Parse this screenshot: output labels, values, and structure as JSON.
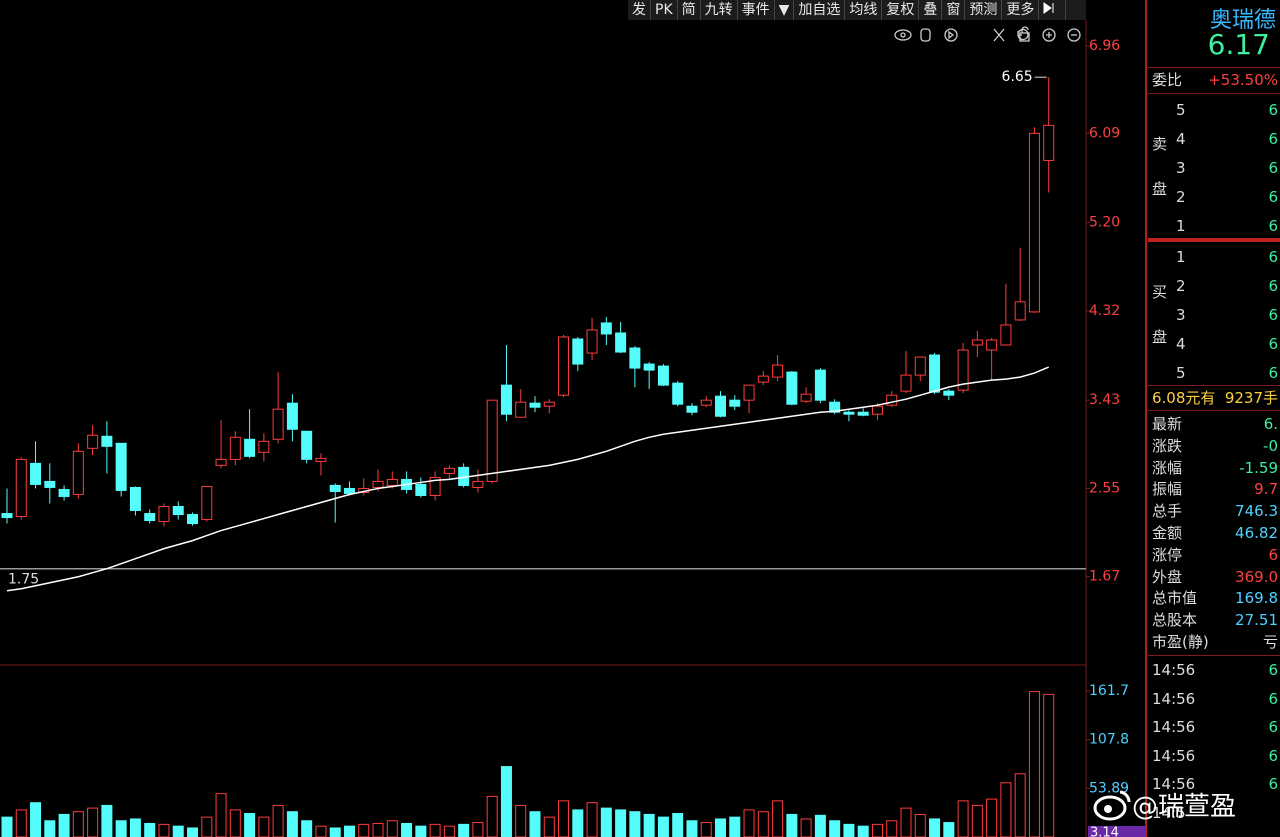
{
  "toolbar": {
    "items": [
      "发",
      "PK",
      "简",
      "九转",
      "事件",
      "▼",
      "加自选",
      "均线",
      "复权",
      "叠",
      "窗",
      "预测",
      "更多"
    ]
  },
  "chart_data": [
    {
      "type": "candlestick",
      "up_color": "#ff3c3c",
      "down_color": "#54fcfc",
      "open": [
        2.3,
        2.27,
        2.8,
        2.62,
        2.54,
        2.49,
        2.95,
        3.07,
        3.0,
        2.56,
        2.3,
        2.22,
        2.37,
        2.29,
        2.24,
        2.78,
        2.84,
        3.04,
        2.91,
        3.04,
        3.4,
        3.12,
        2.82,
        2.58,
        2.55,
        2.51,
        2.56,
        2.58,
        2.64,
        2.59,
        2.48,
        2.7,
        2.76,
        2.56,
        2.62,
        3.58,
        3.26,
        3.4,
        3.37,
        3.48,
        4.04,
        3.9,
        4.2,
        4.1,
        3.95,
        3.79,
        3.77,
        3.6,
        3.37,
        3.38,
        3.47,
        3.43,
        3.43,
        3.61,
        3.66,
        3.71,
        3.42,
        3.73,
        3.41,
        3.31,
        3.31,
        3.29,
        3.38,
        3.52,
        3.68,
        3.88,
        3.52,
        3.53,
        3.98,
        3.93,
        3.98,
        4.23,
        4.31,
        5.82
      ],
      "high": [
        2.55,
        2.86,
        3.02,
        2.8,
        2.58,
        3.0,
        3.18,
        3.22,
        3.0,
        2.57,
        2.34,
        2.4,
        2.42,
        2.31,
        2.57,
        3.23,
        3.12,
        3.34,
        3.1,
        3.71,
        3.49,
        3.12,
        2.9,
        2.6,
        2.62,
        2.65,
        2.74,
        2.72,
        2.72,
        2.66,
        2.72,
        2.78,
        2.8,
        2.74,
        3.43,
        3.98,
        3.54,
        3.47,
        3.44,
        4.08,
        4.06,
        4.25,
        4.26,
        4.21,
        3.97,
        3.81,
        3.79,
        3.62,
        3.4,
        3.47,
        3.52,
        3.48,
        3.58,
        3.72,
        3.88,
        3.72,
        3.56,
        3.75,
        3.44,
        3.33,
        3.35,
        3.4,
        3.52,
        3.92,
        3.86,
        3.9,
        3.54,
        4.0,
        4.12,
        4.05,
        4.59,
        4.95,
        6.15,
        6.65
      ],
      "low": [
        2.2,
        2.24,
        2.55,
        2.4,
        2.43,
        2.45,
        2.88,
        2.7,
        2.47,
        2.28,
        2.2,
        2.17,
        2.24,
        2.18,
        2.22,
        2.75,
        2.78,
        2.85,
        2.82,
        3.0,
        3.02,
        2.8,
        2.68,
        2.21,
        2.48,
        2.48,
        2.52,
        2.55,
        2.5,
        2.46,
        2.43,
        2.64,
        2.56,
        2.51,
        2.6,
        3.22,
        3.26,
        3.31,
        3.3,
        3.46,
        3.72,
        3.83,
        3.98,
        3.9,
        3.56,
        3.54,
        3.57,
        3.37,
        3.28,
        3.36,
        3.26,
        3.33,
        3.3,
        3.58,
        3.62,
        3.38,
        3.4,
        3.4,
        3.29,
        3.22,
        3.27,
        3.23,
        3.36,
        3.5,
        3.62,
        3.49,
        3.43,
        3.5,
        3.86,
        3.63,
        3.98,
        4.22,
        4.3,
        5.5
      ],
      "close": [
        2.26,
        2.84,
        2.59,
        2.56,
        2.47,
        2.92,
        3.08,
        2.97,
        2.53,
        2.33,
        2.23,
        2.37,
        2.29,
        2.2,
        2.57,
        2.84,
        3.06,
        2.87,
        3.02,
        3.34,
        3.14,
        2.84,
        2.85,
        2.52,
        2.5,
        2.55,
        2.62,
        2.64,
        2.54,
        2.48,
        2.66,
        2.75,
        2.58,
        2.62,
        3.43,
        3.29,
        3.41,
        3.36,
        3.41,
        4.06,
        3.79,
        4.13,
        4.09,
        3.91,
        3.75,
        3.73,
        3.58,
        3.39,
        3.31,
        3.43,
        3.27,
        3.37,
        3.58,
        3.67,
        3.78,
        3.39,
        3.49,
        3.43,
        3.31,
        3.29,
        3.28,
        3.37,
        3.48,
        3.68,
        3.86,
        3.51,
        3.48,
        3.93,
        4.03,
        4.03,
        4.18,
        4.41,
        6.09,
        6.17
      ],
      "lines": [
        {
          "color": "#ffffff",
          "values": [
            1.53,
            1.55,
            1.58,
            1.61,
            1.64,
            1.67,
            1.71,
            1.75,
            1.8,
            1.85,
            1.9,
            1.95,
            1.99,
            2.03,
            2.08,
            2.13,
            2.17,
            2.21,
            2.25,
            2.29,
            2.33,
            2.37,
            2.41,
            2.45,
            2.49,
            2.52,
            2.55,
            2.57,
            2.59,
            2.61,
            2.63,
            2.64,
            2.66,
            2.68,
            2.7,
            2.72,
            2.74,
            2.76,
            2.78,
            2.81,
            2.84,
            2.88,
            2.92,
            2.97,
            3.02,
            3.06,
            3.09,
            3.11,
            3.13,
            3.15,
            3.17,
            3.19,
            3.21,
            3.23,
            3.25,
            3.27,
            3.29,
            3.31,
            3.32,
            3.34,
            3.36,
            3.38,
            3.41,
            3.44,
            3.48,
            3.52,
            3.56,
            3.59,
            3.61,
            3.63,
            3.64,
            3.66,
            3.7,
            3.76
          ]
        }
      ],
      "ylim": [
        0.79,
        7.22
      ],
      "yticks": [
        6.96,
        6.09,
        {
          "value": 5.2,
          "label": "5.20"
        },
        4.32,
        3.43,
        2.55,
        1.67
      ],
      "ref_line": {
        "value": 1.75,
        "color": "#9a9a9a"
      }
    },
    {
      "type": "bar",
      "values": [
        22,
        30,
        38,
        18,
        25,
        28,
        32,
        35,
        18,
        20,
        15,
        14,
        12,
        10,
        22,
        48,
        30,
        26,
        22,
        35,
        28,
        18,
        12,
        10,
        12,
        14,
        15,
        18,
        15,
        12,
        14,
        12,
        14,
        16,
        45,
        78,
        35,
        28,
        22,
        40,
        30,
        38,
        32,
        30,
        28,
        25,
        22,
        26,
        18,
        16,
        20,
        22,
        30,
        28,
        40,
        25,
        20,
        24,
        18,
        14,
        12,
        14,
        18,
        32,
        25,
        20,
        16,
        40,
        35,
        42,
        60,
        70,
        161,
        158
      ],
      "ylim": [
        0,
        190.5
      ],
      "yticks": [
        161.7,
        107.8,
        53.89
      ],
      "current_value": 3.14
    }
  ],
  "quote": {
    "name": "奥瑞德",
    "price": "6.17",
    "ratio_label": "委比",
    "ratio": "+53.50%",
    "sell_side": [
      "卖",
      "盘"
    ],
    "sell": [
      [
        "5",
        "6"
      ],
      [
        "4",
        "6"
      ],
      [
        "3",
        "6"
      ],
      [
        "2",
        "6"
      ],
      [
        "1",
        "6"
      ]
    ],
    "buy_side": [
      "买",
      "盘"
    ],
    "buy": [
      [
        "1",
        "6"
      ],
      [
        "2",
        "6"
      ],
      [
        "3",
        "6"
      ],
      [
        "4",
        "6"
      ],
      [
        "5",
        "6"
      ]
    ],
    "summary": [
      "6.08元有",
      "9237手"
    ],
    "stats": [
      [
        "最新",
        "6."
      ],
      [
        "涨跌",
        "-0"
      ],
      [
        "涨幅",
        "-1.59"
      ],
      [
        "振幅",
        "9.7"
      ],
      [
        "总手",
        "746.3"
      ],
      [
        "金额",
        "46.82"
      ],
      [
        "涨停",
        "6"
      ],
      [
        "外盘",
        "369.0"
      ],
      [
        "总市值",
        "169.8"
      ],
      [
        "总股本",
        "27.51"
      ],
      [
        "市盈(静)",
        "亏"
      ]
    ],
    "ticks": [
      [
        "14:56",
        "6"
      ],
      [
        "14:56",
        "6"
      ],
      [
        "14:56",
        "6"
      ],
      [
        "14:56",
        "6"
      ],
      [
        "14:56",
        "6"
      ],
      [
        "14:5",
        ""
      ]
    ]
  },
  "watermark": "@瑞萱盈"
}
